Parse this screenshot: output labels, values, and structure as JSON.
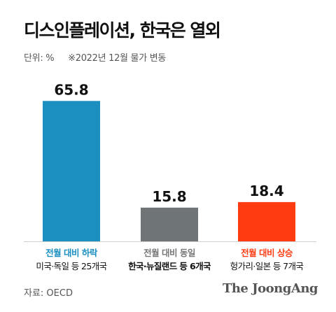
{
  "header": {
    "title": "디스인플레이션, 한국은 열외",
    "unit": "단위: %",
    "note": "※2022년 12월 물가 변동"
  },
  "footer": {
    "source": "자료: OECD",
    "brand": "The JoongAng"
  },
  "chart_data": {
    "type": "bar",
    "categories": [
      "전월 대비 하락",
      "전월 대비 동일",
      "전월 대비 상승"
    ],
    "sublabels": [
      "미국·독일 등 25개국",
      "한국·뉴질랜드 등 6개국",
      "헝가리·일본 등 7개국"
    ],
    "values": [
      65.8,
      15.8,
      18.4
    ],
    "value_labels": [
      "65.8",
      "15.8",
      "18.4"
    ],
    "colors": [
      "#1a8fc0",
      "#6f7477",
      "#ff3b12"
    ],
    "label_colors": [
      "#1a8fc0",
      "#777777",
      "#ff3b12"
    ],
    "sublabel_bold": [
      false,
      true,
      false
    ],
    "ylabel": "%",
    "ylim": [
      0,
      70
    ],
    "grid": false,
    "legend": "none"
  }
}
